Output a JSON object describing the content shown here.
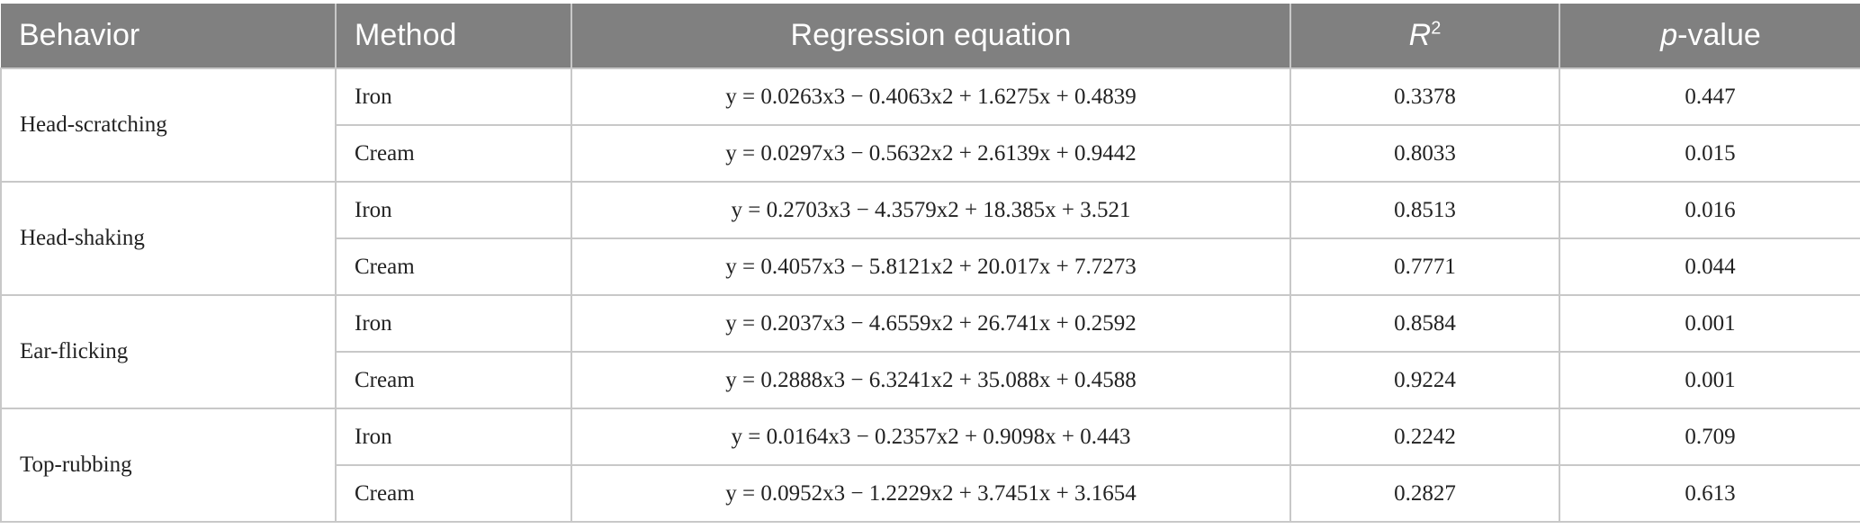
{
  "table": {
    "header": {
      "behavior": "Behavior",
      "method": "Method",
      "equation": "Regression equation",
      "r2": {
        "main": "R",
        "sup": "2"
      },
      "p": {
        "main": "p",
        "rest": "-value"
      }
    },
    "groups": [
      {
        "behavior": "Head-scratching",
        "rows": [
          [
            "Iron",
            "y = 0.0263x3 − 0.4063x2 + 1.6275x + 0.4839",
            "0.3378",
            "0.447"
          ],
          [
            "Cream",
            "y = 0.0297x3 − 0.5632x2 + 2.6139x + 0.9442",
            "0.8033",
            "0.015"
          ]
        ]
      },
      {
        "behavior": "Head-shaking",
        "rows": [
          [
            "Iron",
            "y = 0.2703x3 − 4.3579x2 + 18.385x + 3.521",
            "0.8513",
            "0.016"
          ],
          [
            "Cream",
            "y = 0.4057x3 − 5.8121x2 + 20.017x + 7.7273",
            "0.7771",
            "0.044"
          ]
        ]
      },
      {
        "behavior": "Ear-flicking",
        "rows": [
          [
            "Iron",
            "y = 0.2037x3 − 4.6559x2 + 26.741x + 0.2592",
            "0.8584",
            "0.001"
          ],
          [
            "Cream",
            "y = 0.2888x3 − 6.3241x2 + 35.088x + 0.4588",
            "0.9224",
            "0.001"
          ]
        ]
      },
      {
        "behavior": "Top-rubbing",
        "rows": [
          [
            "Iron",
            "y = 0.0164x3 − 0.2357x2 + 0.9098x + 0.443",
            "0.2242",
            "0.709"
          ],
          [
            "Cream",
            "y = 0.0952x3 − 1.2229x2 + 3.7451x + 3.1654",
            "0.2827",
            "0.613"
          ]
        ]
      }
    ]
  }
}
